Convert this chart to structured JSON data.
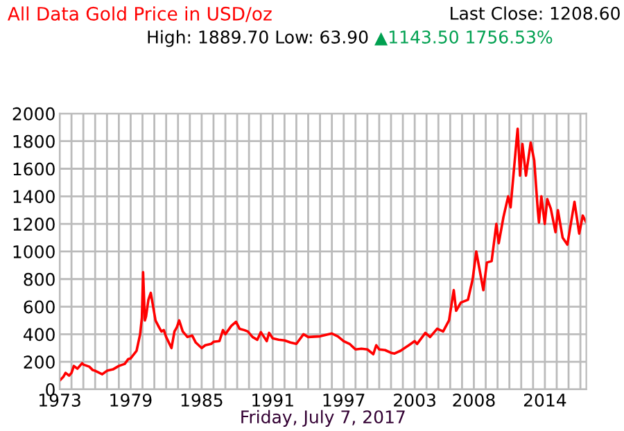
{
  "chart_data": {
    "type": "line",
    "title": "All Data Gold Price in USD/oz",
    "subtitle": "High: 1889.70 Low: 63.90",
    "xlabel": "Friday, July 7, 2017",
    "annotations": [
      "▲1143.50 1756.53%",
      "Last Close: 1208.60"
    ],
    "x": [
      1973.0,
      1973.3,
      1973.5,
      1973.8,
      1974.0,
      1974.2,
      1974.5,
      1974.9,
      1975.0,
      1975.5,
      1975.8,
      1976.0,
      1976.6,
      1977.0,
      1977.5,
      1978.0,
      1978.5,
      1978.8,
      1979.0,
      1979.5,
      1979.8,
      1979.95,
      1980.05,
      1980.2,
      1980.3,
      1980.5,
      1980.7,
      1980.9,
      1981.1,
      1981.4,
      1981.6,
      1981.8,
      1982.0,
      1982.45,
      1982.7,
      1982.9,
      1983.1,
      1983.4,
      1983.8,
      1984.2,
      1984.5,
      1985.0,
      1985.3,
      1985.8,
      1986.0,
      1986.5,
      1986.8,
      1987.0,
      1987.5,
      1987.9,
      1988.2,
      1988.6,
      1988.9,
      1989.3,
      1989.7,
      1990.0,
      1990.5,
      1990.7,
      1991.0,
      1991.5,
      1992.0,
      1992.5,
      1993.0,
      1993.6,
      1994.0,
      1995.0,
      1996.0,
      1996.5,
      1997.0,
      1997.5,
      1998.0,
      1998.5,
      1999.0,
      1999.5,
      1999.75,
      2000.0,
      2000.5,
      2001.0,
      2001.3,
      2001.8,
      2002.5,
      2003.0,
      2003.2,
      2003.9,
      2004.3,
      2004.9,
      2005.4,
      2005.9,
      2006.3,
      2006.5,
      2006.9,
      2007.5,
      2007.9,
      2008.2,
      2008.8,
      2009.1,
      2009.5,
      2009.9,
      2010.1,
      2010.5,
      2010.9,
      2011.1,
      2011.6,
      2011.7,
      2011.9,
      2012.1,
      2012.4,
      2012.8,
      2013.1,
      2013.4,
      2013.5,
      2013.7,
      2013.99,
      2014.2,
      2014.5,
      2014.9,
      2015.1,
      2015.5,
      2015.9,
      2016.5,
      2016.9,
      2017.2,
      2017.5
    ],
    "series": [
      {
        "color": "#ff0000",
        "values": [
          64,
          90,
          120,
          100,
          120,
          170,
          150,
          190,
          180,
          165,
          140,
          135,
          110,
          135,
          145,
          170,
          185,
          220,
          225,
          280,
          400,
          520,
          850,
          500,
          530,
          650,
          700,
          600,
          500,
          450,
          420,
          430,
          380,
          300,
          420,
          450,
          500,
          420,
          380,
          390,
          340,
          300,
          320,
          330,
          345,
          350,
          430,
          400,
          460,
          490,
          440,
          430,
          420,
          380,
          360,
          415,
          350,
          410,
          370,
          360,
          355,
          340,
          330,
          400,
          380,
          385,
          405,
          385,
          350,
          330,
          290,
          295,
          290,
          255,
          320,
          290,
          285,
          265,
          260,
          280,
          320,
          350,
          330,
          410,
          380,
          440,
          420,
          500,
          720,
          570,
          630,
          650,
          800,
          1000,
          720,
          920,
          930,
          1200,
          1060,
          1250,
          1400,
          1320,
          1800,
          1890,
          1550,
          1780,
          1550,
          1790,
          1660,
          1300,
          1210,
          1400,
          1200,
          1380,
          1310,
          1140,
          1300,
          1100,
          1050,
          1360,
          1130,
          1260,
          1210
        ]
      }
    ],
    "xlim": [
      1973,
      2017.5
    ],
    "xticks": [
      {
        "value": 1973,
        "label": "1973"
      },
      {
        "value": 1974,
        "label": null
      },
      {
        "value": 1975,
        "label": null
      },
      {
        "value": 1976,
        "label": null
      },
      {
        "value": 1977,
        "label": null
      },
      {
        "value": 1978,
        "label": null
      },
      {
        "value": 1979,
        "label": "1979"
      },
      {
        "value": 1980,
        "label": null
      },
      {
        "value": 1981,
        "label": null
      },
      {
        "value": 1982,
        "label": null
      },
      {
        "value": 1983,
        "label": null
      },
      {
        "value": 1984,
        "label": null
      },
      {
        "value": 1985,
        "label": "1985"
      },
      {
        "value": 1986,
        "label": null
      },
      {
        "value": 1987,
        "label": null
      },
      {
        "value": 1988,
        "label": null
      },
      {
        "value": 1989,
        "label": null
      },
      {
        "value": 1990,
        "label": null
      },
      {
        "value": 1991,
        "label": "1991"
      },
      {
        "value": 1992,
        "label": null
      },
      {
        "value": 1993,
        "label": null
      },
      {
        "value": 1994,
        "label": null
      },
      {
        "value": 1995,
        "label": null
      },
      {
        "value": 1996,
        "label": null
      },
      {
        "value": 1997,
        "label": "1997"
      },
      {
        "value": 1998,
        "label": null
      },
      {
        "value": 1999,
        "label": null
      },
      {
        "value": 2000,
        "label": null
      },
      {
        "value": 2001,
        "label": null
      },
      {
        "value": 2002,
        "label": null
      },
      {
        "value": 2003,
        "label": "2003"
      },
      {
        "value": 2004,
        "label": null
      },
      {
        "value": 2005,
        "label": null
      },
      {
        "value": 2006,
        "label": null
      },
      {
        "value": 2007,
        "label": null
      },
      {
        "value": 2008,
        "label": "2008"
      },
      {
        "value": 2009,
        "label": null
      },
      {
        "value": 2010,
        "label": null
      },
      {
        "value": 2011,
        "label": null
      },
      {
        "value": 2012,
        "label": null
      },
      {
        "value": 2013,
        "label": null
      },
      {
        "value": 2014,
        "label": "2014"
      },
      {
        "value": 2015,
        "label": null
      },
      {
        "value": 2016,
        "label": null
      },
      {
        "value": 2017,
        "label": null
      }
    ],
    "ylim": [
      0,
      2000
    ],
    "yticks": [
      0,
      200,
      400,
      600,
      800,
      1000,
      1200,
      1400,
      1600,
      1800,
      2000
    ],
    "grid": true,
    "legend": false
  }
}
